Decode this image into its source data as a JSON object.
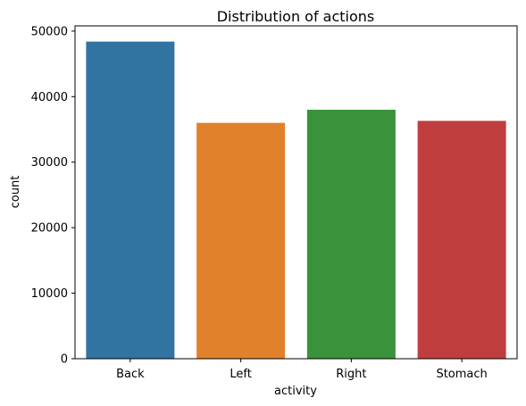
{
  "chart_data": {
    "type": "bar",
    "title": "Distribution of actions",
    "xlabel": "activity",
    "ylabel": "count",
    "categories": [
      "Back",
      "Left",
      "Right",
      "Stomach"
    ],
    "values": [
      48400,
      36000,
      38000,
      36300
    ],
    "colors": [
      "#3274a1",
      "#e1812c",
      "#3a923a",
      "#c03d3e"
    ],
    "ylim": [
      0,
      50800
    ],
    "yticks": [
      0,
      10000,
      20000,
      30000,
      40000,
      50000
    ],
    "grid": false,
    "legend": "none"
  }
}
